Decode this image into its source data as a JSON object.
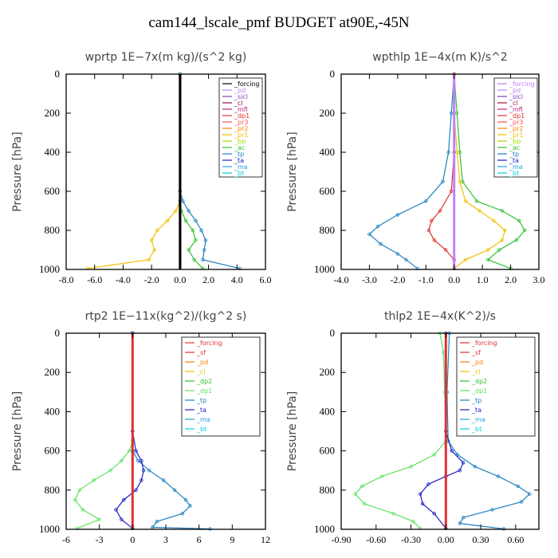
{
  "title": "cam144_lscale_pmf  BUDGET at90E,-45N",
  "chart_data": [
    {
      "type": "line",
      "title": "wprtp   1E−7x(m kg)/(s^2 kg)",
      "ylabel": "Pressure [hPa]",
      "ylim": [
        1000,
        0
      ],
      "xlim": [
        -8,
        6
      ],
      "xticks": [
        -8,
        -6,
        -4,
        -2,
        0,
        2,
        4,
        6
      ],
      "xtick_labels": [
        "-8.0",
        "-6.0",
        "-4.0",
        "-2.0",
        "0.0",
        "2.0",
        "4.0",
        "6.0"
      ],
      "yticks": [
        0,
        200,
        400,
        600,
        800,
        1000
      ],
      "legend_position": "top-right",
      "legend": [
        {
          "name": "_forcing",
          "color": "#000000"
        },
        {
          "name": "_pd",
          "color": "#c080ff"
        },
        {
          "name": "_sicl",
          "color": "#8040c0"
        },
        {
          "name": "_cl",
          "color": "#a01050"
        },
        {
          "name": "_mfl",
          "color": "#c02080"
        },
        {
          "name": "_dp1",
          "color": "#e03030"
        },
        {
          "name": "_pr3",
          "color": "#ff5050"
        },
        {
          "name": "_pr2",
          "color": "#ff8000"
        },
        {
          "name": "_pr1",
          "color": "#f0c000"
        },
        {
          "name": "_bp",
          "color": "#a0e000"
        },
        {
          "name": "_ac",
          "color": "#30c030"
        },
        {
          "name": "_tp",
          "color": "#2080c0"
        },
        {
          "name": "_ta",
          "color": "#2020c0"
        },
        {
          "name": "_ma",
          "color": "#20a0e0"
        },
        {
          "name": "_bt",
          "color": "#00d0e0"
        }
      ],
      "series": [
        {
          "name": "_pr1",
          "color": "#f0c000",
          "points": [
            [
              0,
              0
            ],
            [
              0,
              600
            ],
            [
              0,
              650
            ],
            [
              -0.3,
              700
            ],
            [
              -0.9,
              750
            ],
            [
              -1.6,
              800
            ],
            [
              -2.0,
              850
            ],
            [
              -1.8,
              900
            ],
            [
              -2.2,
              950
            ],
            [
              -6.5,
              995
            ]
          ]
        },
        {
          "name": "_ac",
          "color": "#30c030",
          "points": [
            [
              0,
              0
            ],
            [
              0,
              600
            ],
            [
              0,
              650
            ],
            [
              0.1,
              700
            ],
            [
              0.4,
              750
            ],
            [
              0.9,
              800
            ],
            [
              1.1,
              850
            ],
            [
              0.6,
              900
            ],
            [
              1.0,
              950
            ],
            [
              1.6,
              995
            ]
          ]
        },
        {
          "name": "_tp",
          "color": "#2080c0",
          "points": [
            [
              0,
              0
            ],
            [
              0,
              600
            ],
            [
              0.2,
              650
            ],
            [
              0.6,
              700
            ],
            [
              1.1,
              750
            ],
            [
              1.5,
              800
            ],
            [
              1.8,
              850
            ],
            [
              1.7,
              900
            ],
            [
              1.6,
              950
            ],
            [
              4.2,
              995
            ]
          ]
        },
        {
          "name": "_cl",
          "color": "#a01050",
          "points": [
            [
              0,
              0
            ],
            [
              0,
              1000
            ]
          ]
        },
        {
          "name": "_forcing",
          "color": "#000000",
          "points": [
            [
              0,
              0
            ],
            [
              0,
              1000
            ]
          ]
        }
      ]
    },
    {
      "type": "line",
      "title": "wpthlp   1E−4x(m K)/s^2",
      "ylabel": "Pressure [hPa]",
      "ylim": [
        1000,
        0
      ],
      "xlim": [
        -4,
        3
      ],
      "xticks": [
        -4,
        -3,
        -2,
        -1,
        0,
        1,
        2,
        3
      ],
      "xtick_labels": [
        "-4.0",
        "-3.0",
        "-2.0",
        "-1.0",
        "0.0",
        "1.0",
        "2.0",
        "3.0"
      ],
      "yticks": [
        0,
        200,
        400,
        600,
        800,
        1000
      ],
      "legend_position": "top-right",
      "legend": [
        {
          "name": "_forcing",
          "color": "#c080ff"
        },
        {
          "name": "_pd",
          "color": "#c080ff"
        },
        {
          "name": "_sicl",
          "color": "#8040c0"
        },
        {
          "name": "_cl",
          "color": "#a01050"
        },
        {
          "name": "_mfl",
          "color": "#c02080"
        },
        {
          "name": "_dp1",
          "color": "#e03030"
        },
        {
          "name": "_pr3",
          "color": "#ff5050"
        },
        {
          "name": "_pr2",
          "color": "#ff8000"
        },
        {
          "name": "_pr1",
          "color": "#f0c000"
        },
        {
          "name": "_bp",
          "color": "#a0e000"
        },
        {
          "name": "_ac",
          "color": "#30c030"
        },
        {
          "name": "_tp",
          "color": "#2080c0"
        },
        {
          "name": "_ta",
          "color": "#2020c0"
        },
        {
          "name": "_ma",
          "color": "#20a0e0"
        },
        {
          "name": "_bt",
          "color": "#00d0e0"
        }
      ],
      "series": [
        {
          "name": "_ac",
          "color": "#30c030",
          "points": [
            [
              0,
              0
            ],
            [
              0.1,
              200
            ],
            [
              0.2,
              400
            ],
            [
              0.3,
              550
            ],
            [
              0.8,
              650
            ],
            [
              1.7,
              700
            ],
            [
              2.3,
              750
            ],
            [
              2.5,
              800
            ],
            [
              2.2,
              850
            ],
            [
              1.6,
              900
            ],
            [
              1.2,
              950
            ],
            [
              2.0,
              995
            ]
          ]
        },
        {
          "name": "_pr1",
          "color": "#f0c000",
          "points": [
            [
              0,
              0
            ],
            [
              0,
              200
            ],
            [
              0.1,
              400
            ],
            [
              0.2,
              550
            ],
            [
              0.4,
              650
            ],
            [
              0.9,
              700
            ],
            [
              1.4,
              750
            ],
            [
              1.8,
              800
            ],
            [
              1.7,
              850
            ],
            [
              1.2,
              900
            ],
            [
              0.4,
              950
            ],
            [
              0,
              995
            ]
          ]
        },
        {
          "name": "_tp",
          "color": "#2080c0",
          "points": [
            [
              0,
              0
            ],
            [
              -0.1,
              200
            ],
            [
              -0.2,
              400
            ],
            [
              -0.4,
              550
            ],
            [
              -1.0,
              650
            ],
            [
              -2.0,
              720
            ],
            [
              -2.7,
              780
            ],
            [
              -3.0,
              820
            ],
            [
              -2.6,
              870
            ],
            [
              -2.0,
              920
            ],
            [
              -1.7,
              950
            ],
            [
              -1.3,
              995
            ]
          ]
        },
        {
          "name": "_dp1",
          "color": "#e03030",
          "points": [
            [
              0,
              0
            ],
            [
              0,
              400
            ],
            [
              -0.1,
              600
            ],
            [
              -0.5,
              700
            ],
            [
              -0.8,
              750
            ],
            [
              -0.9,
              800
            ],
            [
              -0.7,
              850
            ],
            [
              -0.3,
              900
            ],
            [
              0,
              950
            ],
            [
              0,
              995
            ]
          ]
        },
        {
          "name": "_pd",
          "color": "#c080ff",
          "points": [
            [
              0,
              0
            ],
            [
              0,
              1000
            ]
          ]
        }
      ]
    },
    {
      "type": "line",
      "title": "rtp2   1E−11x(kg^2)/(kg^2 s)",
      "ylabel": "Pressure [hPa]",
      "ylim": [
        1000,
        0
      ],
      "xlim": [
        -6,
        12
      ],
      "xticks": [
        -6,
        -3,
        0,
        3,
        6,
        9,
        12
      ],
      "xtick_labels": [
        "-6",
        "-3",
        "0",
        "3",
        "6",
        "9",
        "12"
      ],
      "yticks": [
        0,
        200,
        400,
        600,
        800,
        1000
      ],
      "legend_position": "top-right",
      "legend": [
        {
          "name": "_forcing",
          "color": "#e03030"
        },
        {
          "name": "_sf",
          "color": "#e03030"
        },
        {
          "name": "_pd",
          "color": "#ff8000"
        },
        {
          "name": "_cl",
          "color": "#f0c000"
        },
        {
          "name": "_dp2",
          "color": "#30c030"
        },
        {
          "name": "_dp1",
          "color": "#60e060"
        },
        {
          "name": "_tp",
          "color": "#2080c0"
        },
        {
          "name": "_ta",
          "color": "#2020c0"
        },
        {
          "name": "_ma",
          "color": "#20a0e0"
        },
        {
          "name": "_bt",
          "color": "#00d0e0"
        }
      ],
      "series": [
        {
          "name": "_dp1",
          "color": "#60e060",
          "points": [
            [
              0,
              0
            ],
            [
              0,
              550
            ],
            [
              -0.3,
              600
            ],
            [
              -1.0,
              650
            ],
            [
              -2.0,
              700
            ],
            [
              -3.5,
              750
            ],
            [
              -4.8,
              800
            ],
            [
              -5.2,
              850
            ],
            [
              -4.5,
              900
            ],
            [
              -3.0,
              950
            ],
            [
              -5.0,
              995
            ]
          ]
        },
        {
          "name": "_tp",
          "color": "#2080c0",
          "points": [
            [
              0,
              0
            ],
            [
              0,
              600
            ],
            [
              0.5,
              650
            ],
            [
              1.5,
              700
            ],
            [
              2.8,
              750
            ],
            [
              3.8,
              800
            ],
            [
              4.8,
              850
            ],
            [
              5.2,
              880
            ],
            [
              4.5,
              920
            ],
            [
              2.2,
              960
            ],
            [
              1.8,
              990
            ],
            [
              7.0,
              998
            ]
          ]
        },
        {
          "name": "_ta",
          "color": "#2020c0",
          "points": [
            [
              0,
              0
            ],
            [
              0,
              500
            ],
            [
              0.3,
              600
            ],
            [
              0.8,
              650
            ],
            [
              1.0,
              700
            ],
            [
              0.8,
              750
            ],
            [
              0.3,
              800
            ],
            [
              -0.8,
              850
            ],
            [
              -1.5,
              900
            ],
            [
              -1.0,
              950
            ],
            [
              0,
              995
            ]
          ]
        },
        {
          "name": "_forcing",
          "color": "#e03030",
          "points": [
            [
              0,
              0
            ],
            [
              0,
              1000
            ]
          ]
        }
      ]
    },
    {
      "type": "line",
      "title": "thlp2   1E−4x(K^2)/s",
      "ylabel": "Pressure [hPa]",
      "ylim": [
        1000,
        0
      ],
      "xlim": [
        -0.9,
        0.8
      ],
      "xticks": [
        -0.9,
        -0.6,
        -0.3,
        0,
        0.3,
        0.6
      ],
      "xtick_labels": [
        "-0.90",
        "-0.60",
        "-0.30",
        "0.00",
        "0.30",
        "0.60"
      ],
      "yticks": [
        0,
        200,
        400,
        600,
        800,
        1000
      ],
      "legend_position": "top-right",
      "legend": [
        {
          "name": "_forcing",
          "color": "#e03030"
        },
        {
          "name": "_sf",
          "color": "#e03030"
        },
        {
          "name": "_pd",
          "color": "#ff8000"
        },
        {
          "name": "_cl",
          "color": "#f0c000"
        },
        {
          "name": "_dp2",
          "color": "#30c030"
        },
        {
          "name": "_dp1",
          "color": "#60e060"
        },
        {
          "name": "_tp",
          "color": "#2080c0"
        },
        {
          "name": "_ta",
          "color": "#2020c0"
        },
        {
          "name": "_ma",
          "color": "#20a0e0"
        },
        {
          "name": "_bt",
          "color": "#00d0e0"
        }
      ],
      "series": [
        {
          "name": "_dp1",
          "color": "#60e060",
          "points": [
            [
              -0.05,
              0
            ],
            [
              -0.02,
              100
            ],
            [
              -0.01,
              300
            ],
            [
              0,
              550
            ],
            [
              -0.1,
              620
            ],
            [
              -0.3,
              680
            ],
            [
              -0.55,
              730
            ],
            [
              -0.72,
              780
            ],
            [
              -0.78,
              820
            ],
            [
              -0.7,
              870
            ],
            [
              -0.45,
              920
            ],
            [
              -0.28,
              960
            ],
            [
              -0.22,
              995
            ]
          ]
        },
        {
          "name": "_tp",
          "color": "#2080c0",
          "points": [
            [
              0.03,
              0
            ],
            [
              0.01,
              300
            ],
            [
              0.02,
              550
            ],
            [
              0.1,
              620
            ],
            [
              0.25,
              680
            ],
            [
              0.45,
              730
            ],
            [
              0.62,
              780
            ],
            [
              0.72,
              820
            ],
            [
              0.65,
              860
            ],
            [
              0.4,
              900
            ],
            [
              0.15,
              940
            ],
            [
              0.12,
              970
            ],
            [
              0.5,
              998
            ]
          ]
        },
        {
          "name": "_ta",
          "color": "#2020c0",
          "points": [
            [
              0,
              0
            ],
            [
              0,
              500
            ],
            [
              0.05,
              600
            ],
            [
              0.15,
              660
            ],
            [
              0.12,
              700
            ],
            [
              0,
              730
            ],
            [
              -0.15,
              770
            ],
            [
              -0.22,
              820
            ],
            [
              -0.2,
              870
            ],
            [
              -0.1,
              920
            ],
            [
              0,
              995
            ]
          ]
        },
        {
          "name": "_forcing",
          "color": "#e03030",
          "points": [
            [
              0,
              0
            ],
            [
              0,
              1000
            ]
          ]
        }
      ]
    }
  ]
}
